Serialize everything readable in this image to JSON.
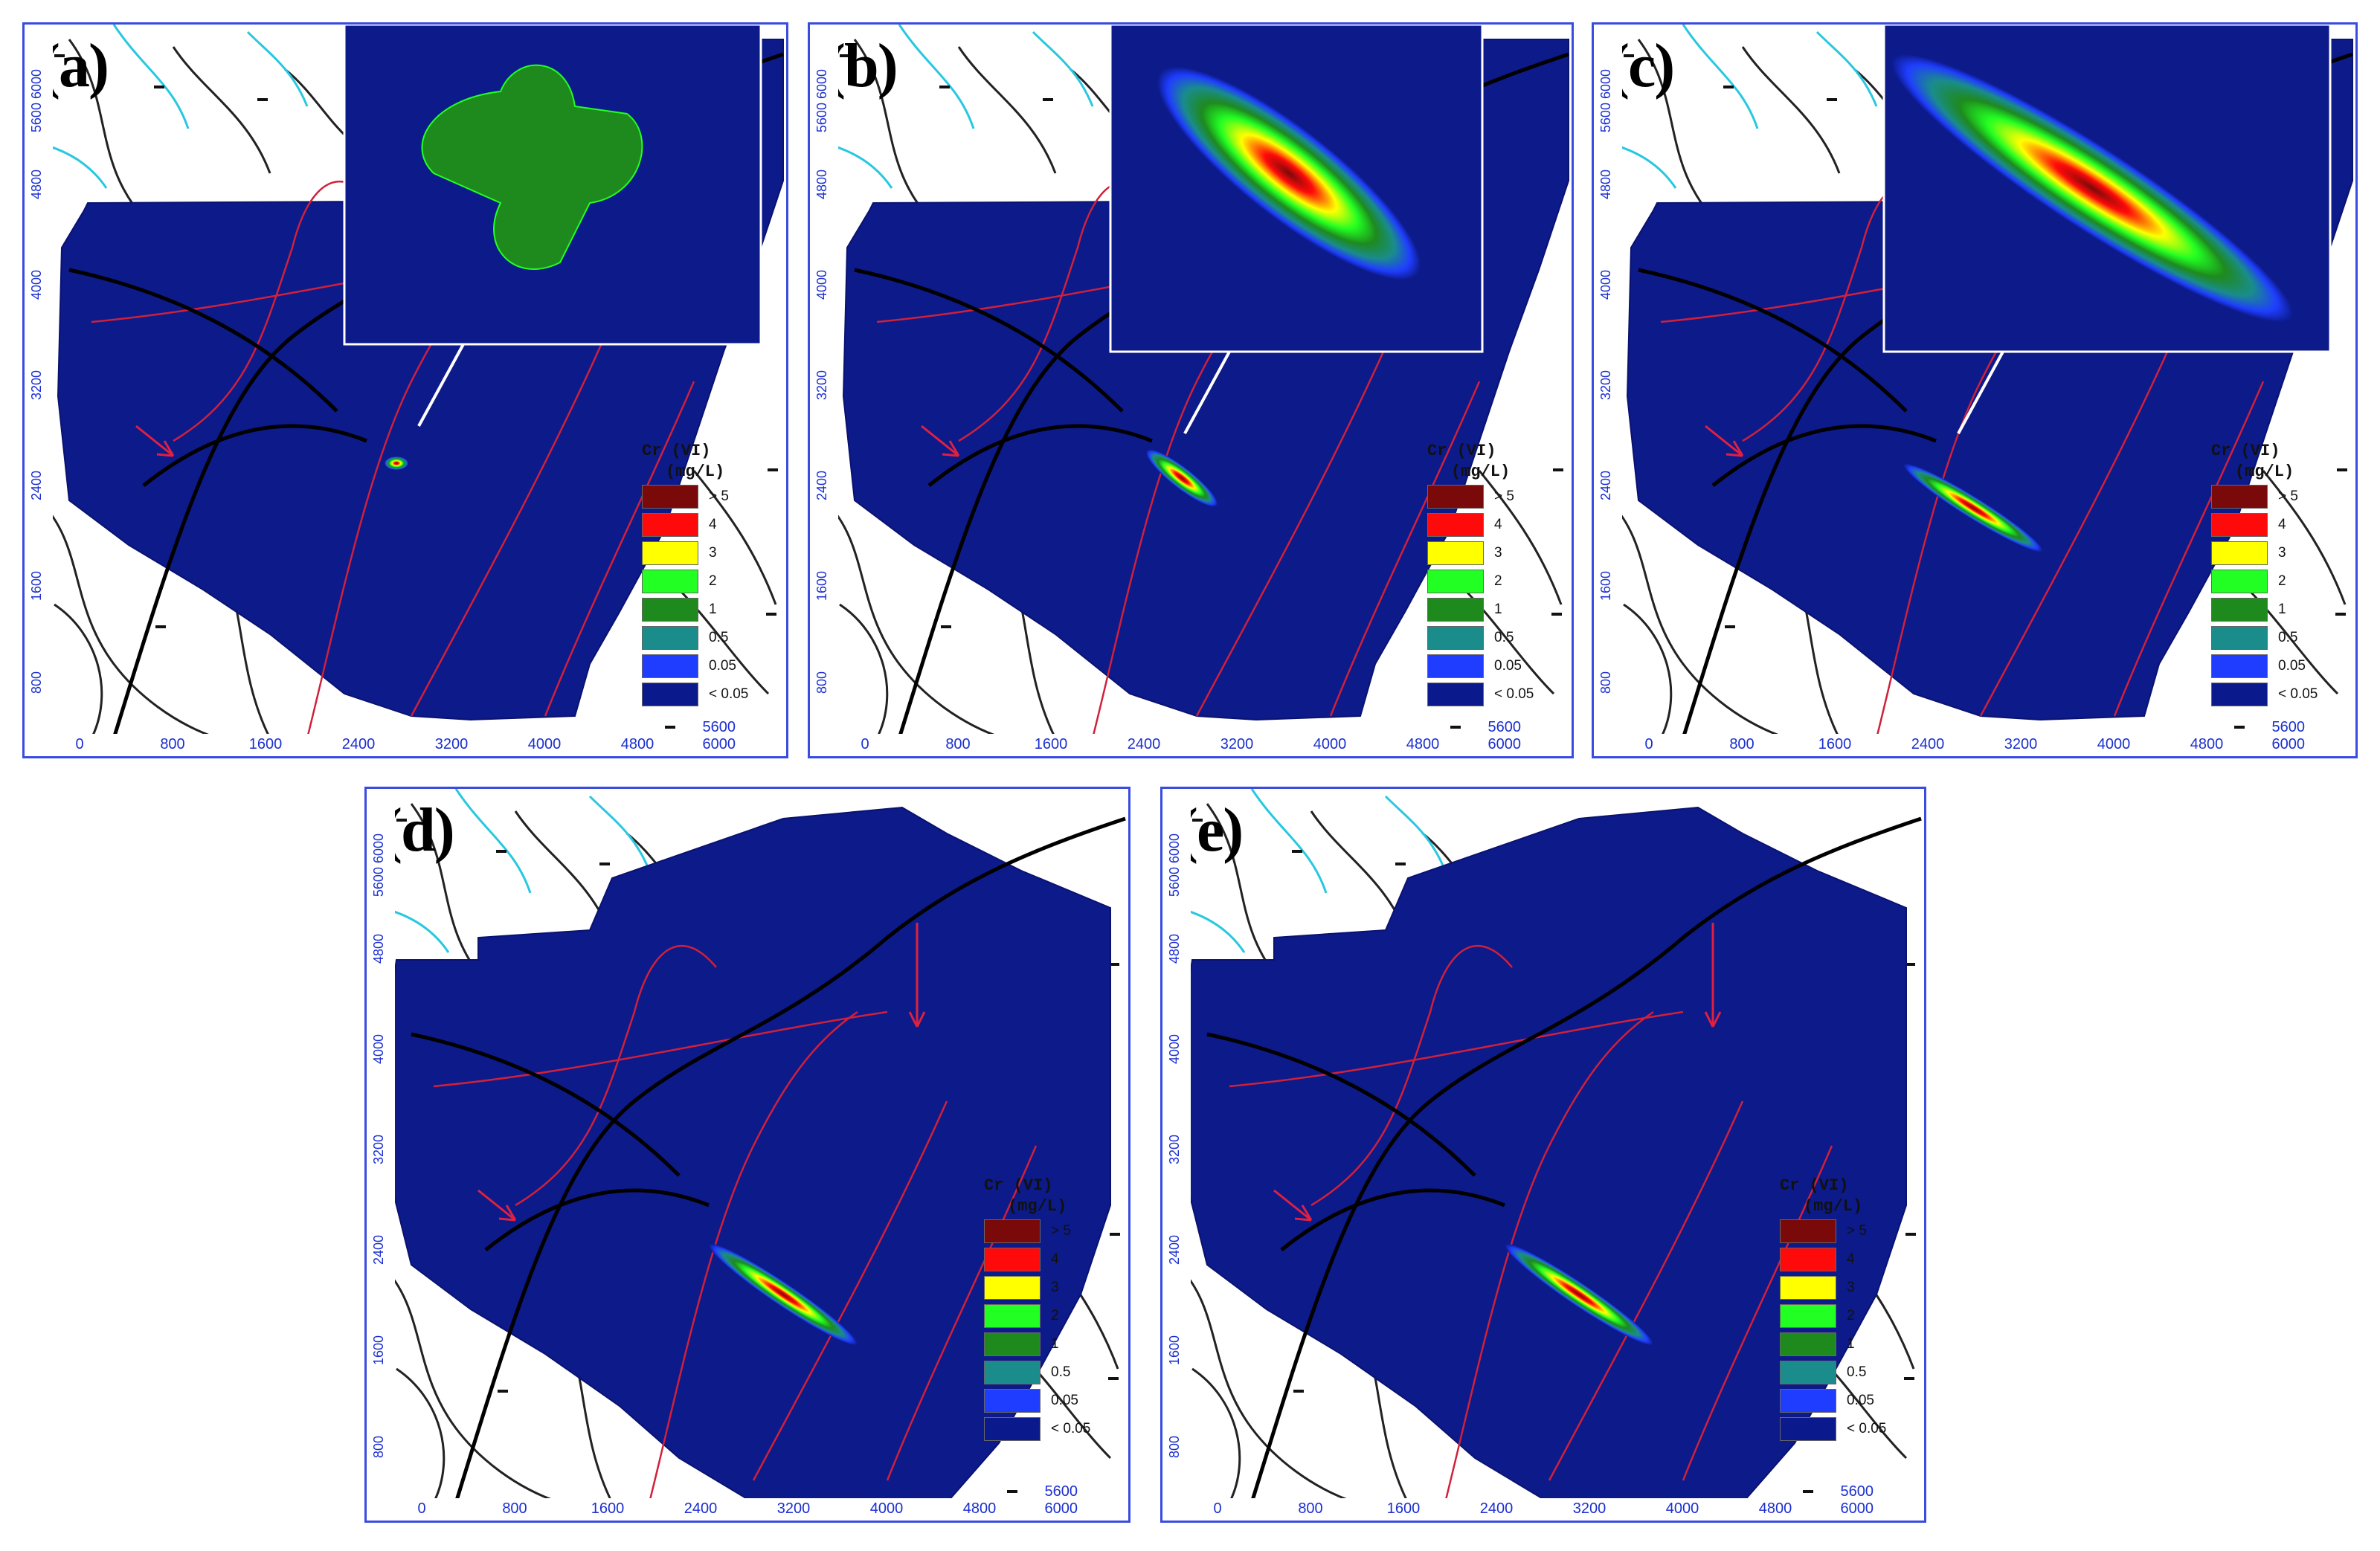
{
  "panels": [
    {
      "label": "(a)"
    },
    {
      "label": "(b)"
    },
    {
      "label": "(c)"
    },
    {
      "label": "(d)"
    },
    {
      "label": "(e)"
    }
  ],
  "x_ticks": [
    "0",
    "800",
    "1600",
    "2400",
    "3200",
    "4000",
    "4800",
    "5600 6000"
  ],
  "y_ticks": [
    "800",
    "1600",
    "2400",
    "3200",
    "4000",
    "4800",
    "5600 6000"
  ],
  "legend": {
    "title": "Cr (VI)",
    "unit": "(mg/L)",
    "classes": [
      {
        "label": "> 5",
        "color": "#7a0a0a"
      },
      {
        "label": "4",
        "color": "#ff0a0a"
      },
      {
        "label": "3",
        "color": "#ffff00"
      },
      {
        "label": "2",
        "color": "#22ff22"
      },
      {
        "label": "1",
        "color": "#1e8a1e"
      },
      {
        "label": "0.5",
        "color": "#1a8c8c"
      },
      {
        "label": "0.05",
        "color": "#1f3dff"
      },
      {
        "label": "< 0.05",
        "color": "#0a1a8c"
      }
    ]
  },
  "colors": {
    "domain_fill": "#0c1a8a",
    "river": "#28c8e0",
    "contour": "#d0203a",
    "frame": "#3a4ce0"
  }
}
